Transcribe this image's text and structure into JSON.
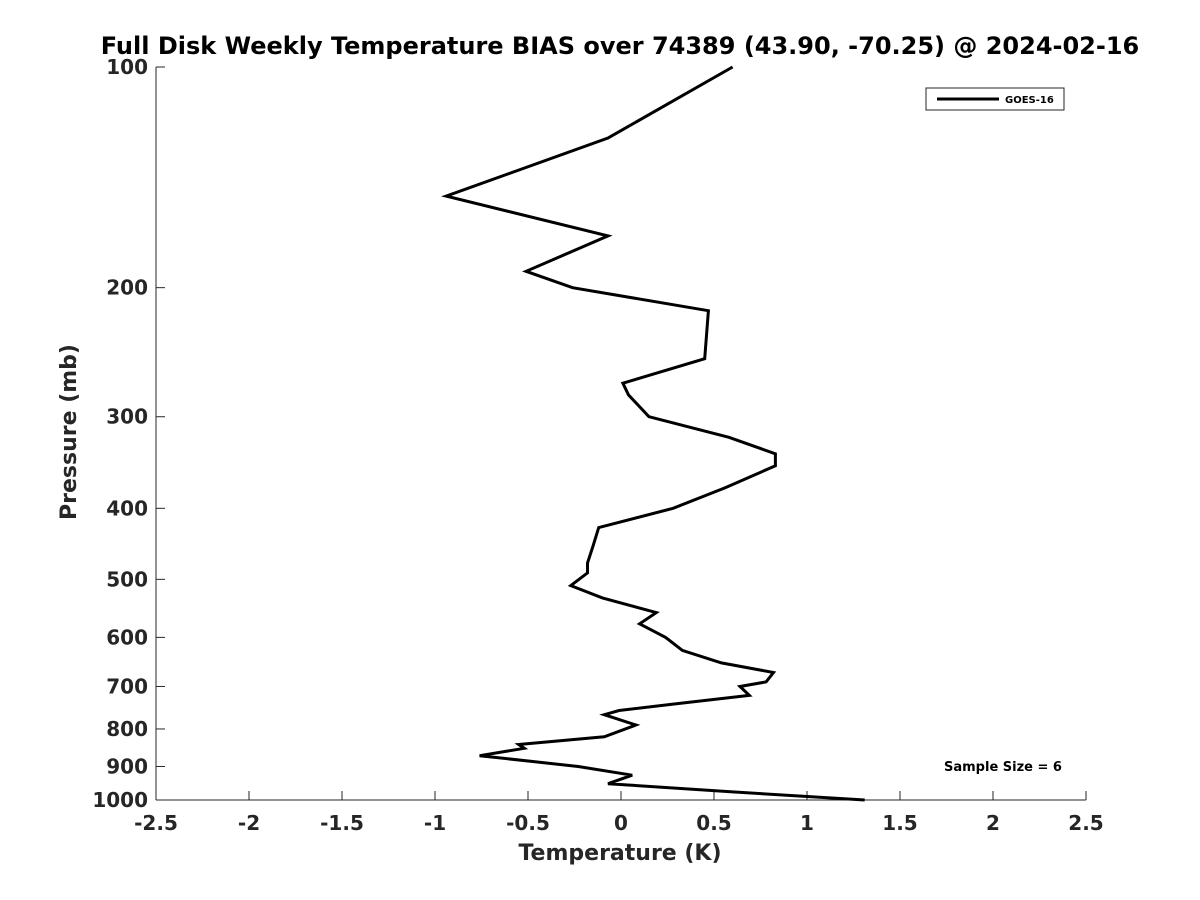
{
  "chart_data": {
    "type": "line",
    "title": "Full Disk Weekly Temperature BIAS over 74389 (43.90, -70.25) @ 2024-02-16",
    "xlabel": "Temperature (K)",
    "ylabel": "Pressure (mb)",
    "xlim": [
      -2.5,
      2.5
    ],
    "ylim": [
      1000,
      100
    ],
    "yscale": "log",
    "y_reversed": true,
    "grid": false,
    "xticks": [
      -2.5,
      -2,
      -1.5,
      -1,
      -0.5,
      0,
      0.5,
      1,
      1.5,
      2,
      2.5
    ],
    "xtick_labels": [
      "-2.5",
      "-2",
      "-1.5",
      "-1",
      "-0.5",
      "0",
      "0.5",
      "1",
      "1.5",
      "2",
      "2.5"
    ],
    "yticks": [
      100,
      200,
      300,
      400,
      500,
      600,
      700,
      800,
      900,
      1000
    ],
    "ytick_labels": [
      "100",
      "200",
      "300",
      "400",
      "500",
      "600",
      "700",
      "800",
      "900",
      "1000"
    ],
    "legend_position": "top-right",
    "series": [
      {
        "name": "GOES-16",
        "color": "#000000",
        "points": [
          [
            0.6,
            100
          ],
          [
            -0.07,
            125
          ],
          [
            -0.94,
            150
          ],
          [
            -0.07,
            170
          ],
          [
            -0.51,
            190
          ],
          [
            -0.26,
            200
          ],
          [
            0.47,
            215
          ],
          [
            0.45,
            250
          ],
          [
            0.01,
            270
          ],
          [
            0.04,
            280
          ],
          [
            0.15,
            300
          ],
          [
            0.58,
            320
          ],
          [
            0.83,
            337
          ],
          [
            0.83,
            350
          ],
          [
            0.56,
            375
          ],
          [
            0.28,
            400
          ],
          [
            -0.12,
            425
          ],
          [
            -0.15,
            450
          ],
          [
            -0.18,
            475
          ],
          [
            -0.18,
            490
          ],
          [
            -0.27,
            510
          ],
          [
            -0.1,
            530
          ],
          [
            0.19,
            555
          ],
          [
            0.1,
            575
          ],
          [
            0.24,
            600
          ],
          [
            0.33,
            625
          ],
          [
            0.54,
            650
          ],
          [
            0.82,
            670
          ],
          [
            0.78,
            690
          ],
          [
            0.64,
            700
          ],
          [
            0.69,
            720
          ],
          [
            0.28,
            740
          ],
          [
            -0.01,
            755
          ],
          [
            -0.09,
            765
          ],
          [
            0.08,
            790
          ],
          [
            -0.09,
            820
          ],
          [
            -0.55,
            840
          ],
          [
            -0.52,
            850
          ],
          [
            -0.76,
            870
          ],
          [
            -0.23,
            900
          ],
          [
            0.06,
            925
          ],
          [
            -0.07,
            950
          ],
          [
            0.6,
            975
          ],
          [
            1.31,
            1000
          ]
        ]
      }
    ],
    "annotation": "Sample Size = 6"
  }
}
